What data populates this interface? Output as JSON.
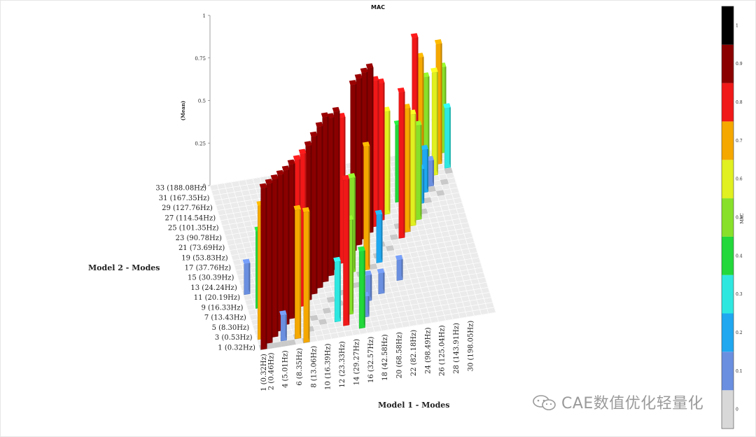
{
  "chart_data": {
    "type": "bar3d",
    "title": "MAC",
    "xlabel": "Model 1 - Modes",
    "ylabel": "Model 2 - Modes",
    "zlabel": "(Mean)",
    "colorbar_label": "MAC",
    "zlim": [
      0,
      1
    ],
    "z_ticks": [
      "0",
      "0.25",
      "0.5",
      "0.75",
      "1"
    ],
    "colorbar_ticks": [
      "0",
      "0.1",
      "0.2",
      "0.3",
      "0.4",
      "0.5",
      "0.6",
      "0.7",
      "0.8",
      "0.9",
      "1"
    ],
    "x_tick_labels": [
      "1 (0.32Hz)",
      "2 (0.46Hz)",
      "4 (5.01Hz)",
      "6 (8.35Hz)",
      "8 (13.06Hz)",
      "10 (16.39Hz)",
      "12 (23.33Hz)",
      "14 (29.27Hz)",
      "16 (32.57Hz)",
      "18 (42.58Hz)",
      "20 (68.58Hz)",
      "22 (82.18Hz)",
      "24 (98.49Hz)",
      "26 (125.04Hz)",
      "28 (143.91Hz)",
      "30 (198.05Hz)"
    ],
    "y_tick_labels": [
      "1 (0.32Hz)",
      "3 (0.53Hz)",
      "5 (8.30Hz)",
      "7 (13.43Hz)",
      "9 (16.33Hz)",
      "11 (20.19Hz)",
      "13 (24.24Hz)",
      "15 (30.39Hz)",
      "17 (37.76Hz)",
      "19 (53.83Hz)",
      "21 (73.69Hz)",
      "23 (90.78Hz)",
      "25 (101.35Hz)",
      "27 (114.54Hz)",
      "29 (127.76Hz)",
      "31 (167.35Hz)",
      "33 (188.08Hz)"
    ],
    "colorscale": [
      {
        "min": 0.0,
        "color": "#d8d8d8"
      },
      {
        "min": 0.1,
        "color": "#6a8fe0"
      },
      {
        "min": 0.2,
        "color": "#1fa8f0"
      },
      {
        "min": 0.3,
        "color": "#2ee8e0"
      },
      {
        "min": 0.4,
        "color": "#22d83a"
      },
      {
        "min": 0.5,
        "color": "#88e02a"
      },
      {
        "min": 0.6,
        "color": "#e0f020"
      },
      {
        "min": 0.7,
        "color": "#f5a800"
      },
      {
        "min": 0.8,
        "color": "#f01818"
      },
      {
        "min": 0.9,
        "color": "#8a0000"
      },
      {
        "min": 1.0,
        "color": "#000000"
      }
    ],
    "bars": [
      {
        "x": 1,
        "y": 1,
        "value": 0.94
      },
      {
        "x": 2,
        "y": 2,
        "value": 0.93
      },
      {
        "x": 3,
        "y": 3,
        "value": 0.92
      },
      {
        "x": 4,
        "y": 4,
        "value": 0.91
      },
      {
        "x": 5,
        "y": 5,
        "value": 0.9
      },
      {
        "x": 6,
        "y": 6,
        "value": 0.9
      },
      {
        "x": 7,
        "y": 7,
        "value": 0.89
      },
      {
        "x": 8,
        "y": 8,
        "value": 0.89
      },
      {
        "x": 9,
        "y": 9,
        "value": 0.9
      },
      {
        "x": 10,
        "y": 10,
        "value": 0.92
      },
      {
        "x": 11,
        "y": 11,
        "value": 0.94
      },
      {
        "x": 12,
        "y": 12,
        "value": 0.96
      },
      {
        "x": 13,
        "y": 13,
        "value": 0.92
      },
      {
        "x": 14,
        "y": 14,
        "value": 0.92
      },
      {
        "x": 15,
        "y": 15,
        "value": 0.85
      },
      {
        "x": 17,
        "y": 17,
        "value": 0.97
      },
      {
        "x": 18,
        "y": 18,
        "value": 0.97
      },
      {
        "x": 19,
        "y": 19,
        "value": 0.97
      },
      {
        "x": 20,
        "y": 20,
        "value": 0.96
      },
      {
        "x": 21,
        "y": 21,
        "value": 0.85
      },
      {
        "x": 22,
        "y": 22,
        "value": 0.8
      },
      {
        "x": 23,
        "y": 23,
        "value": 0.6
      },
      {
        "x": 25,
        "y": 25,
        "value": 0.45
      },
      {
        "x": 26,
        "y": 26,
        "value": 0.35
      },
      {
        "x": 28,
        "y": 28,
        "value": 0.85
      },
      {
        "x": 29,
        "y": 29,
        "value": 0.7
      },
      {
        "x": 30,
        "y": 30,
        "value": 0.55
      },
      {
        "x": 1,
        "y": 3,
        "value": 0.78
      },
      {
        "x": 2,
        "y": 9,
        "value": 0.45
      },
      {
        "x": 1,
        "y": 12,
        "value": 0.18
      },
      {
        "x": 6,
        "y": 2,
        "value": 0.75
      },
      {
        "x": 7,
        "y": 1,
        "value": 0.76
      },
      {
        "x": 4,
        "y": 2,
        "value": 0.15
      },
      {
        "x": 13,
        "y": 3,
        "value": 0.85
      },
      {
        "x": 12,
        "y": 4,
        "value": 0.35
      },
      {
        "x": 14,
        "y": 5,
        "value": 0.55
      },
      {
        "x": 15,
        "y": 2,
        "value": 0.45
      },
      {
        "x": 16,
        "y": 4,
        "value": 0.12
      },
      {
        "x": 17,
        "y": 7,
        "value": 0.15
      },
      {
        "x": 16,
        "y": 13,
        "value": 0.55
      },
      {
        "x": 18,
        "y": 13,
        "value": 0.72
      },
      {
        "x": 20,
        "y": 14,
        "value": 0.28
      },
      {
        "x": 19,
        "y": 8,
        "value": 0.12
      },
      {
        "x": 22,
        "y": 10,
        "value": 0.12
      },
      {
        "x": 24,
        "y": 18,
        "value": 0.85
      },
      {
        "x": 25,
        "y": 19,
        "value": 0.72
      },
      {
        "x": 26,
        "y": 20,
        "value": 0.65
      },
      {
        "x": 27,
        "y": 21,
        "value": 0.55
      },
      {
        "x": 26,
        "y": 22,
        "value": 0.32
      },
      {
        "x": 27,
        "y": 25,
        "value": 0.3
      },
      {
        "x": 28,
        "y": 24,
        "value": 0.2
      },
      {
        "x": 29,
        "y": 26,
        "value": 0.25
      },
      {
        "x": 30,
        "y": 27,
        "value": 0.15
      },
      {
        "x": 31,
        "y": 29,
        "value": 0.6
      },
      {
        "x": 32,
        "y": 31,
        "value": 0.7
      },
      {
        "x": 33,
        "y": 30,
        "value": 0.35
      },
      {
        "x": 33,
        "y": 33,
        "value": 0.5
      },
      {
        "x": 29,
        "y": 33,
        "value": 0.12
      },
      {
        "x": 30,
        "y": 32,
        "value": 0.22
      },
      {
        "x": 32,
        "y": 33,
        "value": 0.18
      }
    ]
  },
  "watermark": {
    "text": "CAE数值优化轻量化"
  }
}
